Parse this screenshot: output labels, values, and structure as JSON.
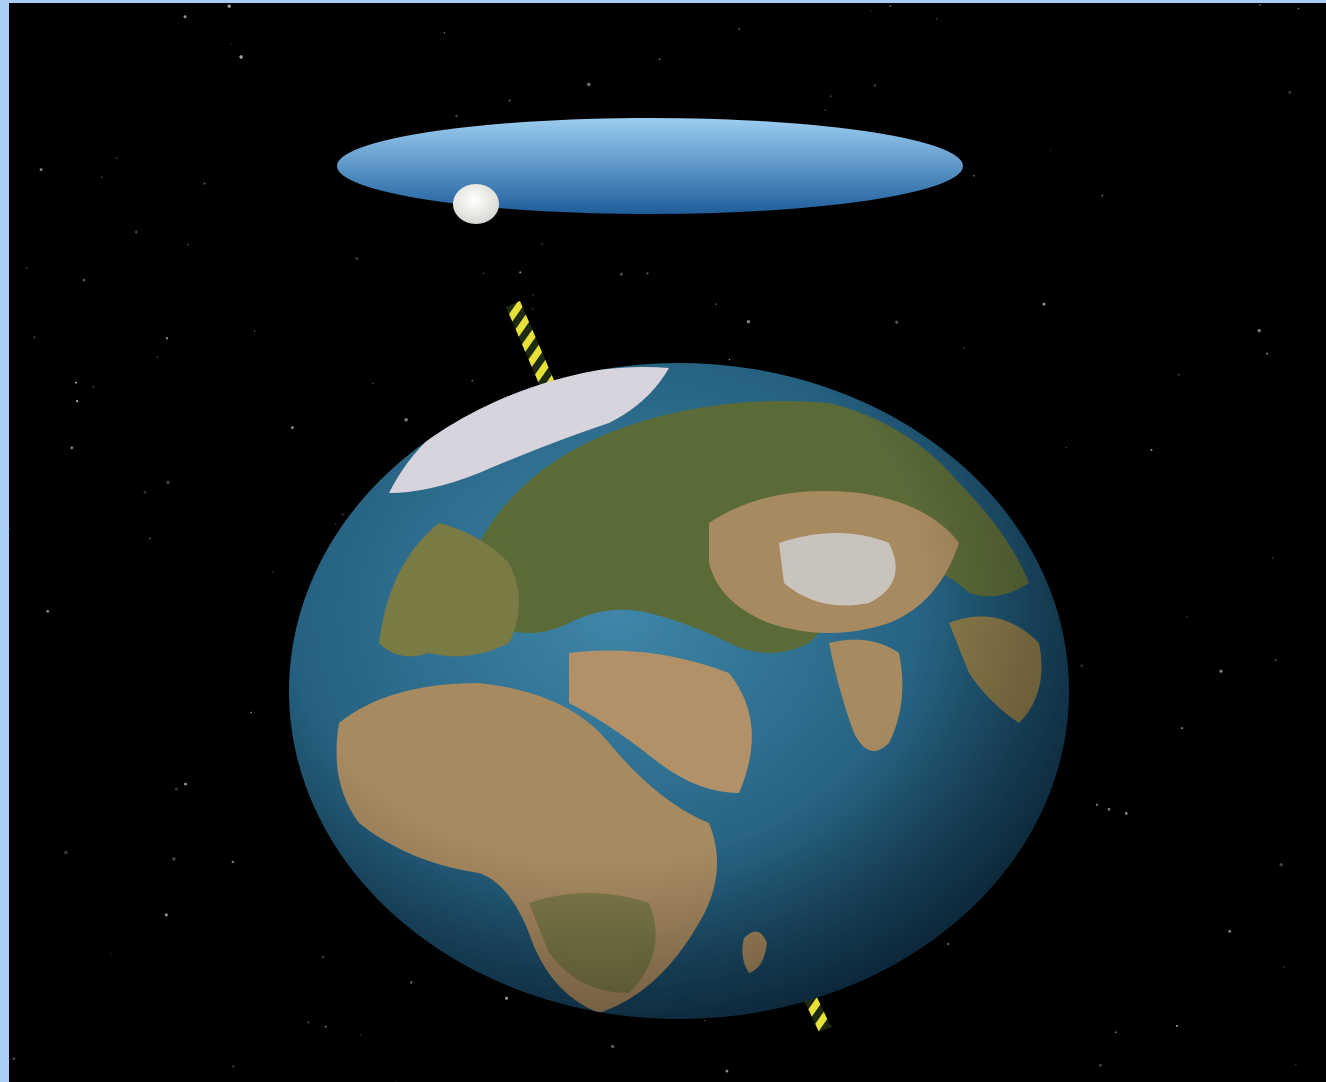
{
  "scene": {
    "description_id": "earth-orbit-animation",
    "colors": {
      "background": "#000000",
      "frame": "#a9cdf5",
      "orbit_plane_center": "#8ec2ea",
      "orbit_plane_edge": "#1f5d9a",
      "moon": "#f4f4f0",
      "axis_yellow": "#e6e23a",
      "axis_dark": "#1e2a10",
      "ocean": "#25607f",
      "land_green": "#5b6b38",
      "land_desert": "#a88a60",
      "ice": "#d8d4de"
    },
    "icons": {
      "orbit": "orbit-plane-icon",
      "moon": "moon-icon",
      "earth": "earth-globe-icon",
      "axis": "rotation-axis-icon"
    }
  }
}
